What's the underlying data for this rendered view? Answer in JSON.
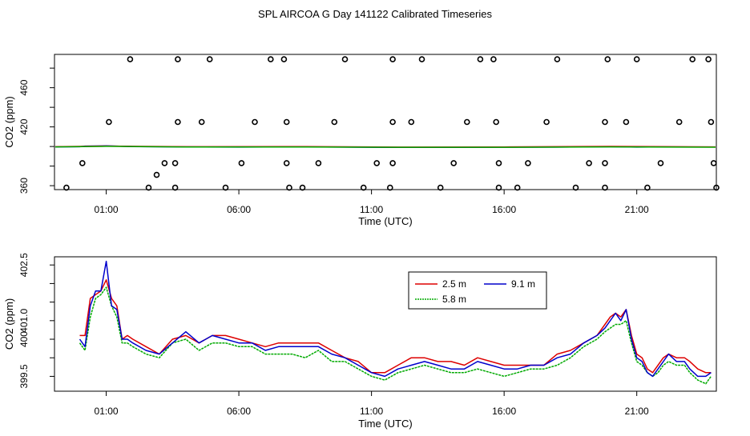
{
  "title": "SPL AIRCOA G  Day 141122  Calibrated Timeseries",
  "colors": {
    "s25": "#dd0000",
    "s58": "#00aa00",
    "s91": "#0000cc",
    "axis": "#000000"
  },
  "chart_data": [
    {
      "type": "scatter",
      "name": "top-panel",
      "xlabel": "Time (UTC)",
      "ylabel": "CO2 (ppm)",
      "xticks": [
        1,
        6,
        11,
        16,
        21
      ],
      "xtick_labels": [
        "01:00",
        "06:00",
        "11:00",
        "16:00",
        "21:00"
      ],
      "yticks": [
        360,
        380,
        400,
        420,
        440,
        460,
        480
      ],
      "ytick_labels": [
        "360",
        "",
        "",
        "420",
        "",
        "460",
        ""
      ],
      "xlim": [
        -0.95,
        24.0
      ],
      "ylim": [
        356,
        494
      ],
      "lines": [
        {
          "name": "9.1 m",
          "color": "s91",
          "points": [
            [
              -1,
              399.6
            ],
            [
              0,
              399.8
            ],
            [
              0.2,
              400.4
            ],
            [
              1,
              400.7
            ],
            [
              2,
              399.9
            ],
            [
              4,
              399.6
            ],
            [
              6,
              399.4
            ],
            [
              8,
              399.6
            ],
            [
              10,
              399.4
            ],
            [
              11,
              399.2
            ],
            [
              12,
              399.1
            ],
            [
              14,
              399.1
            ],
            [
              16,
              399.3
            ],
            [
              18,
              399.4
            ],
            [
              20,
              399.8
            ],
            [
              21,
              399.4
            ],
            [
              22,
              399.6
            ],
            [
              23,
              399.5
            ],
            [
              24,
              399.5
            ]
          ]
        },
        {
          "name": "2.5 m",
          "color": "s25",
          "points": [
            [
              -1,
              399.8
            ],
            [
              1,
              400.4
            ],
            [
              4,
              399.8
            ],
            [
              8,
              399.9
            ],
            [
              12,
              399.4
            ],
            [
              16,
              399.5
            ],
            [
              20,
              400.1
            ],
            [
              24,
              399.6
            ]
          ]
        },
        {
          "name": "5.8 m",
          "color": "s58",
          "points": [
            [
              -1,
              399.5
            ],
            [
              1,
              400.2
            ],
            [
              4,
              399.5
            ],
            [
              8,
              399.5
            ],
            [
              12,
              399.2
            ],
            [
              16,
              399.2
            ],
            [
              20,
              399.6
            ],
            [
              24,
              399.3
            ]
          ]
        }
      ],
      "points": [
        [
          -0.5,
          358
        ],
        [
          1.1,
          425
        ],
        [
          0.1,
          383
        ],
        [
          1.9,
          489
        ],
        [
          2.6,
          358
        ],
        [
          3.2,
          383
        ],
        [
          2.9,
          371
        ],
        [
          3.7,
          489
        ],
        [
          3.7,
          425
        ],
        [
          3.6,
          383
        ],
        [
          3.6,
          358
        ],
        [
          4.6,
          425
        ],
        [
          4.9,
          489
        ],
        [
          5.5,
          358
        ],
        [
          6.1,
          383
        ],
        [
          6.6,
          425
        ],
        [
          7.2,
          489
        ],
        [
          7.7,
          489
        ],
        [
          7.8,
          425
        ],
        [
          7.8,
          383
        ],
        [
          7.9,
          358
        ],
        [
          8.4,
          358
        ],
        [
          9.0,
          383
        ],
        [
          9.6,
          425
        ],
        [
          10.0,
          489
        ],
        [
          10.7,
          358
        ],
        [
          11.2,
          383
        ],
        [
          11.8,
          489
        ],
        [
          11.8,
          425
        ],
        [
          11.8,
          383
        ],
        [
          11.7,
          358
        ],
        [
          12.5,
          425
        ],
        [
          12.9,
          489
        ],
        [
          13.6,
          358
        ],
        [
          14.1,
          383
        ],
        [
          14.6,
          425
        ],
        [
          15.1,
          489
        ],
        [
          15.6,
          489
        ],
        [
          15.7,
          425
        ],
        [
          15.8,
          383
        ],
        [
          15.8,
          358
        ],
        [
          16.5,
          358
        ],
        [
          16.9,
          383
        ],
        [
          17.6,
          425
        ],
        [
          18.0,
          489
        ],
        [
          18.7,
          358
        ],
        [
          19.2,
          383
        ],
        [
          19.8,
          383
        ],
        [
          19.8,
          358
        ],
        [
          19.8,
          425
        ],
        [
          19.9,
          489
        ],
        [
          20.6,
          425
        ],
        [
          21.0,
          489
        ],
        [
          21.4,
          358
        ],
        [
          21.9,
          383
        ],
        [
          22.6,
          425
        ],
        [
          23.1,
          489
        ],
        [
          23.7,
          489
        ],
        [
          23.8,
          425
        ],
        [
          23.9,
          383
        ],
        [
          24.0,
          358
        ]
      ]
    },
    {
      "type": "line",
      "name": "bottom-panel",
      "xlabel": "Time (UTC)",
      "ylabel": "CO2 (ppm)",
      "xticks": [
        1,
        6,
        11,
        16,
        21
      ],
      "xtick_labels": [
        "01:00",
        "06:00",
        "11:00",
        "16:00",
        "21:00"
      ],
      "yticks": [
        399.5,
        400.0,
        400.5,
        401.0,
        401.5,
        402.0,
        402.5
      ],
      "ytick_labels": [
        "399.5",
        "",
        "400",
        "401.0",
        "",
        "",
        "402.5"
      ],
      "xlim": [
        -0.95,
        24.0
      ],
      "ylim": [
        399.1,
        402.72
      ],
      "legend": {
        "placement": "top-center",
        "entries": [
          "2.5 m",
          "5.8 m",
          "9.1 m"
        ]
      },
      "series": [
        {
          "name": "2.5 m",
          "color": "s25",
          "x": [
            0.0,
            0.2,
            0.4,
            0.6,
            0.8,
            1.0,
            1.2,
            1.4,
            1.6,
            1.8,
            2.0,
            2.5,
            3.0,
            3.5,
            4.0,
            4.5,
            5.0,
            5.5,
            6.0,
            6.5,
            7.0,
            7.5,
            8.0,
            8.5,
            9.0,
            9.5,
            10.0,
            10.5,
            11.0,
            11.5,
            12.0,
            12.5,
            13.0,
            13.5,
            14.0,
            14.5,
            15.0,
            15.5,
            16.0,
            16.5,
            17.0,
            17.5,
            18.0,
            18.5,
            19.0,
            19.5,
            19.8,
            20.0,
            20.2,
            20.4,
            20.6,
            20.8,
            21.0,
            21.2,
            21.4,
            21.6,
            21.8,
            22.0,
            22.2,
            22.5,
            22.8,
            23.0,
            23.3,
            23.6,
            23.8
          ],
          "values": [
            400.6,
            400.6,
            401.6,
            401.7,
            401.8,
            402.1,
            401.6,
            401.4,
            400.5,
            400.6,
            400.5,
            400.3,
            400.1,
            400.5,
            400.6,
            400.4,
            400.6,
            400.6,
            400.5,
            400.4,
            400.3,
            400.4,
            400.4,
            400.4,
            400.4,
            400.2,
            400.0,
            399.9,
            399.6,
            399.6,
            399.8,
            400.0,
            400.0,
            399.9,
            399.9,
            399.8,
            400.0,
            399.9,
            399.8,
            399.8,
            399.8,
            399.8,
            400.1,
            400.2,
            400.4,
            400.6,
            400.9,
            401.1,
            401.2,
            401.1,
            401.3,
            400.6,
            400.1,
            400.0,
            399.7,
            399.6,
            399.8,
            400.0,
            400.1,
            400.0,
            400.0,
            399.9,
            399.7,
            399.6,
            399.6
          ]
        },
        {
          "name": "5.8 m",
          "color": "s58",
          "x": [
            0.0,
            0.2,
            0.4,
            0.6,
            0.8,
            1.0,
            1.2,
            1.4,
            1.6,
            1.8,
            2.0,
            2.5,
            3.0,
            3.5,
            4.0,
            4.5,
            5.0,
            5.5,
            6.0,
            6.5,
            7.0,
            7.5,
            8.0,
            8.5,
            9.0,
            9.5,
            10.0,
            10.5,
            11.0,
            11.5,
            12.0,
            12.5,
            13.0,
            13.5,
            14.0,
            14.5,
            15.0,
            15.5,
            16.0,
            16.5,
            17.0,
            17.5,
            18.0,
            18.5,
            19.0,
            19.5,
            19.8,
            20.0,
            20.2,
            20.4,
            20.6,
            20.8,
            21.0,
            21.2,
            21.4,
            21.6,
            21.8,
            22.0,
            22.2,
            22.5,
            22.8,
            23.0,
            23.3,
            23.6,
            23.8
          ],
          "values": [
            400.4,
            400.2,
            401.1,
            401.6,
            401.7,
            401.9,
            401.4,
            401.1,
            400.4,
            400.4,
            400.3,
            400.1,
            400.0,
            400.4,
            400.5,
            400.2,
            400.4,
            400.4,
            400.3,
            400.3,
            400.1,
            400.1,
            400.1,
            400.0,
            400.2,
            399.9,
            399.9,
            399.7,
            399.5,
            399.4,
            399.6,
            399.7,
            399.8,
            399.7,
            399.6,
            399.6,
            399.7,
            399.6,
            399.5,
            399.6,
            399.7,
            399.7,
            399.8,
            400.0,
            400.3,
            400.5,
            400.7,
            400.8,
            400.9,
            400.9,
            401.0,
            400.4,
            399.9,
            399.8,
            399.6,
            399.5,
            399.6,
            399.8,
            399.9,
            399.8,
            399.8,
            399.6,
            399.4,
            399.3,
            399.5
          ]
        },
        {
          "name": "9.1 m",
          "color": "s91",
          "x": [
            0.0,
            0.2,
            0.4,
            0.6,
            0.8,
            1.0,
            1.2,
            1.4,
            1.6,
            1.8,
            2.0,
            2.5,
            3.0,
            3.5,
            4.0,
            4.5,
            5.0,
            5.5,
            6.0,
            6.5,
            7.0,
            7.5,
            8.0,
            8.5,
            9.0,
            9.5,
            10.0,
            10.5,
            11.0,
            11.5,
            12.0,
            12.5,
            13.0,
            13.5,
            14.0,
            14.5,
            15.0,
            15.5,
            16.0,
            16.5,
            17.0,
            17.5,
            18.0,
            18.5,
            19.0,
            19.5,
            19.8,
            20.0,
            20.2,
            20.4,
            20.6,
            20.8,
            21.0,
            21.2,
            21.4,
            21.6,
            21.8,
            22.0,
            22.2,
            22.5,
            22.8,
            23.0,
            23.3,
            23.6,
            23.8
          ],
          "values": [
            400.5,
            400.3,
            401.4,
            401.8,
            401.8,
            402.6,
            401.4,
            401.3,
            400.5,
            400.5,
            400.4,
            400.2,
            400.1,
            400.4,
            400.7,
            400.4,
            400.6,
            400.5,
            400.4,
            400.4,
            400.2,
            400.3,
            400.3,
            400.3,
            400.3,
            400.1,
            400.0,
            399.8,
            399.6,
            399.5,
            399.7,
            399.8,
            399.9,
            399.8,
            399.7,
            399.7,
            399.9,
            399.8,
            399.7,
            399.7,
            399.8,
            399.8,
            400.0,
            400.1,
            400.4,
            400.6,
            400.8,
            401.0,
            401.2,
            401.0,
            401.3,
            400.5,
            400.0,
            399.9,
            399.6,
            399.5,
            399.7,
            399.9,
            400.1,
            399.9,
            399.9,
            399.7,
            399.5,
            399.5,
            399.6
          ]
        }
      ]
    }
  ]
}
